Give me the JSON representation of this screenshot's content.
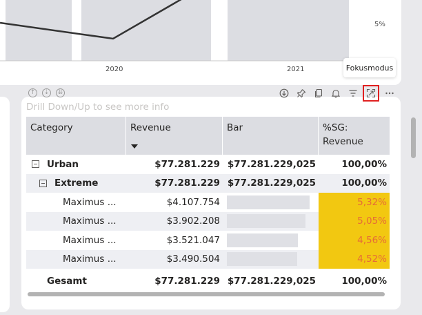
{
  "chart": {
    "x_ticks": [
      "2020",
      "2021"
    ],
    "y_tick": "5%"
  },
  "tooltip": "Fokusmodus",
  "visual": {
    "header_icons": [
      "drill-up-icon",
      "drill-down-icon",
      "expand-level-icon"
    ],
    "toolbar": [
      "download-icon",
      "pin-icon",
      "copy-icon",
      "alert-icon",
      "filter-icon",
      "focus-mode-icon",
      "more-options-icon"
    ],
    "hint": "Drill Down/Up to see more info"
  },
  "table": {
    "columns": [
      "Category",
      "Revenue",
      "Bar",
      "%SG: Revenue"
    ],
    "rows": [
      {
        "category": "Urban",
        "revenue": "$77.281.229",
        "bar": "$77.281.229,025",
        "pct": "100,00%",
        "level": 0,
        "bold": true,
        "alt": false
      },
      {
        "category": "Extreme",
        "revenue": "$77.281.229",
        "bar": "$77.281.229,025",
        "pct": "100,00%",
        "level": 1,
        "bold": true,
        "alt": true
      },
      {
        "category": "Maximus ...",
        "revenue": "$4.107.754",
        "bar_fraction": 0.0532,
        "pct": "5,32%",
        "level": 2,
        "bold": false,
        "alt": false
      },
      {
        "category": "Maximus ...",
        "revenue": "$3.902.208",
        "bar_fraction": 0.0505,
        "pct": "5,05%",
        "level": 2,
        "bold": false,
        "alt": true
      },
      {
        "category": "Maximus ...",
        "revenue": "$3.521.047",
        "bar_fraction": 0.0456,
        "pct": "4,56%",
        "level": 2,
        "bold": false,
        "alt": false
      },
      {
        "category": "Maximus ...",
        "revenue": "$3.490.504",
        "bar_fraction": 0.0452,
        "pct": "4,52%",
        "level": 2,
        "bold": false,
        "alt": true
      }
    ],
    "total": {
      "label": "Gesamt",
      "revenue": "$77.281.229",
      "bar": "$77.281.229,025",
      "pct": "100,00%"
    }
  },
  "colors": {
    "highlight": "#f2c811",
    "pct_text": "#e66c37",
    "focus_box": "#e02020"
  }
}
